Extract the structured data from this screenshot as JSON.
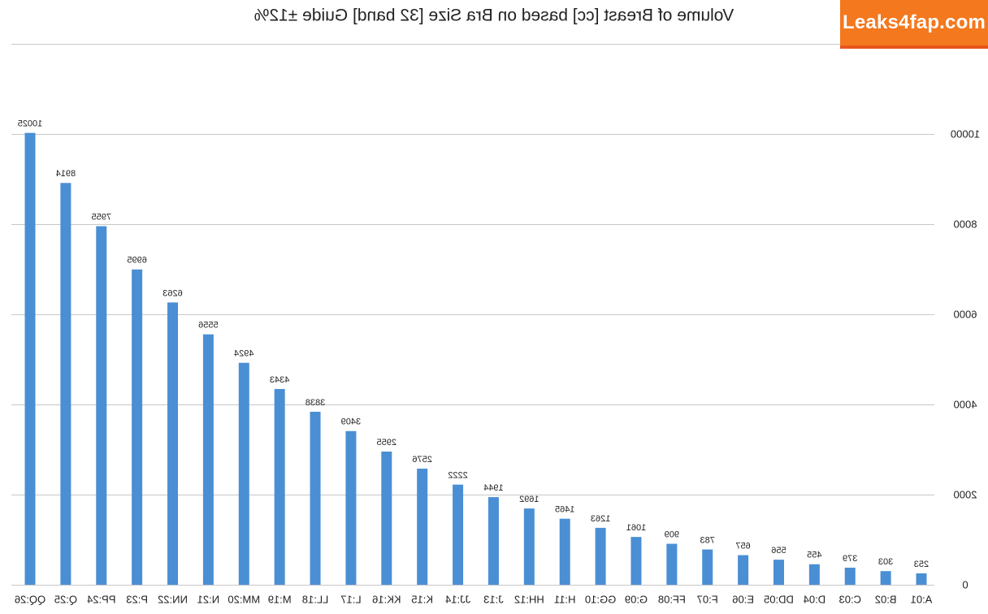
{
  "watermark": "Leaks4fap.com",
  "colors": {
    "bar": "#4a8fd4",
    "grid": "#c8c8c8",
    "text": "#222222",
    "watermark_bg": "#f4781e"
  },
  "chart_data": {
    "type": "bar",
    "title": "Volume of Breast [cc] based on Bra Size [32 band] Guide ±12%",
    "xlabel": "",
    "ylabel": "",
    "ylim": [
      0,
      12000
    ],
    "yticks": [
      0,
      2000,
      4000,
      6000,
      8000,
      10000
    ],
    "grid": true,
    "mirrored": true,
    "categories": [
      "A:01",
      "B:02",
      "C:03",
      "D:04",
      "DD:05",
      "E:06",
      "F:07",
      "FF:08",
      "G:09",
      "GG:10",
      "H:11",
      "HH:12",
      "J:13",
      "JJ:14",
      "K:15",
      "KK:16",
      "L:17",
      "LL:18",
      "M:19",
      "MM:20",
      "N:21",
      "NN:22",
      "P:23",
      "PP:24",
      "Q:25",
      "QQ:26"
    ],
    "values": [
      253,
      303,
      379,
      455,
      556,
      657,
      783,
      909,
      1061,
      1263,
      1465,
      1692,
      1944,
      2222,
      2576,
      2955,
      3409,
      3838,
      4343,
      4924,
      5556,
      6263,
      6995,
      7955,
      8914,
      10025
    ]
  }
}
